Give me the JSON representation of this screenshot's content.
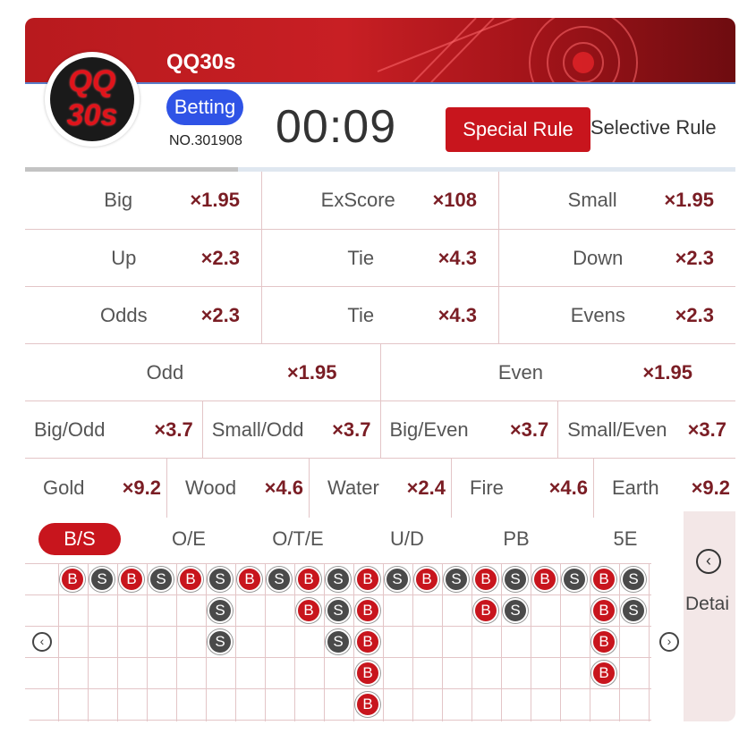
{
  "header": {
    "title": "QQ30s",
    "logo_line1": "QQ",
    "logo_line2": "30s",
    "status": "Betting",
    "issue_no": "NO.301908",
    "countdown": "00:09",
    "special_rule": "Special Rule",
    "selective_rule": "Selective Rule",
    "progress": 0.3
  },
  "odds": {
    "rows": [
      [
        {
          "name": "Big",
          "odds": "×1.95"
        },
        {
          "name": "ExScore",
          "odds": "×108"
        },
        {
          "name": "Small",
          "odds": "×1.95"
        }
      ],
      [
        {
          "name": "Up",
          "odds": "×2.3"
        },
        {
          "name": "Tie",
          "odds": "×4.3"
        },
        {
          "name": "Down",
          "odds": "×2.3"
        }
      ],
      [
        {
          "name": "Odds",
          "odds": "×2.3"
        },
        {
          "name": "Tie",
          "odds": "×4.3"
        },
        {
          "name": "Evens",
          "odds": "×2.3"
        }
      ],
      [
        {
          "name": "Odd",
          "odds": "×1.95"
        },
        {
          "name": "Even",
          "odds": "×1.95"
        }
      ],
      [
        {
          "name": "Big/Odd",
          "odds": "×3.7"
        },
        {
          "name": "Small/Odd",
          "odds": "×3.7"
        },
        {
          "name": "Big/Even",
          "odds": "×3.7"
        },
        {
          "name": "Small/Even",
          "odds": "×3.7"
        }
      ],
      [
        {
          "name": "Gold",
          "odds": "×9.2"
        },
        {
          "name": "Wood",
          "odds": "×4.6"
        },
        {
          "name": "Water",
          "odds": "×2.4"
        },
        {
          "name": "Fire",
          "odds": "×4.6"
        },
        {
          "name": "Earth",
          "odds": "×9.2"
        }
      ]
    ]
  },
  "tabs": [
    "B/S",
    "O/E",
    "O/T/E",
    "U/D",
    "PB",
    "5E"
  ],
  "active_tab": 0,
  "detail_label": "Detai",
  "road": {
    "columns": [
      [
        "B"
      ],
      [
        "S"
      ],
      [
        "B"
      ],
      [
        "S"
      ],
      [
        "B"
      ],
      [
        "S",
        "S",
        "S"
      ],
      [
        "B"
      ],
      [
        "S"
      ],
      [
        "B",
        "B"
      ],
      [
        "S",
        "S",
        "S"
      ],
      [
        "B",
        "B",
        "B",
        "B",
        "B"
      ],
      [
        "S"
      ],
      [
        "B"
      ],
      [
        "S"
      ],
      [
        "B",
        "B"
      ],
      [
        "S",
        "S"
      ],
      [
        "B"
      ],
      [
        "S"
      ],
      [
        "B",
        "B",
        "B",
        "B"
      ],
      [
        "S",
        "S"
      ]
    ]
  },
  "colors": {
    "accent": "#c8151d",
    "badge": "#2f53e6",
    "odds": "#7a1d24"
  }
}
